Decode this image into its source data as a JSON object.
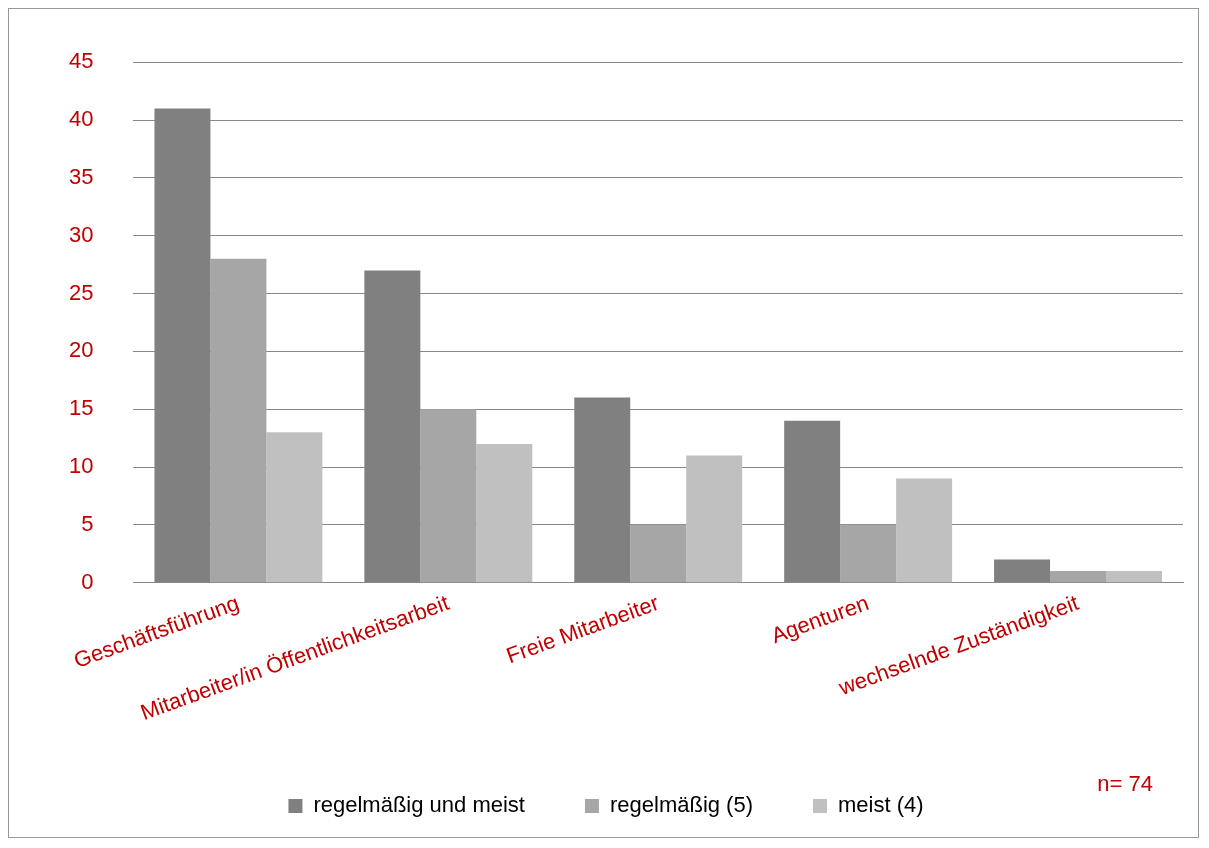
{
  "chart_data": {
    "type": "bar",
    "categories": [
      "Geschäftsführung",
      "Mitarbeiter/in Öffentlichkeitsarbeit",
      "Freie Mitarbeiter",
      "Agenturen",
      "wechselnde Zuständigkeit"
    ],
    "series": [
      {
        "name": "regelmäßig und meist",
        "color": "#808080",
        "values": [
          41,
          27,
          16,
          14,
          2
        ]
      },
      {
        "name": "regelmäßig (5)",
        "color": "#a6a6a6",
        "values": [
          28,
          15,
          5,
          5,
          1
        ]
      },
      {
        "name": "meist (4)",
        "color": "#c0c0c0",
        "values": [
          13,
          12,
          11,
          9,
          1
        ]
      }
    ],
    "ylim": [
      0,
      45
    ],
    "yticks": [
      0,
      5,
      10,
      15,
      20,
      25,
      30,
      35,
      40,
      45
    ],
    "grid": "y",
    "legend": "bottom",
    "annotations": [
      "n= 74"
    ]
  }
}
